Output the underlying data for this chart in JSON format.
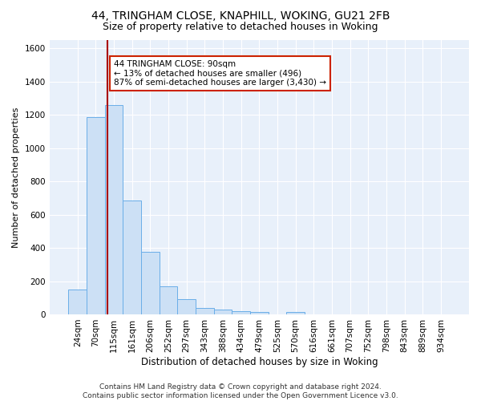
{
  "title1": "44, TRINGHAM CLOSE, KNAPHILL, WOKING, GU21 2FB",
  "title2": "Size of property relative to detached houses in Woking",
  "xlabel": "Distribution of detached houses by size in Woking",
  "ylabel": "Number of detached properties",
  "bar_labels": [
    "24sqm",
    "70sqm",
    "115sqm",
    "161sqm",
    "206sqm",
    "252sqm",
    "297sqm",
    "343sqm",
    "388sqm",
    "434sqm",
    "479sqm",
    "525sqm",
    "570sqm",
    "616sqm",
    "661sqm",
    "707sqm",
    "752sqm",
    "798sqm",
    "843sqm",
    "889sqm",
    "934sqm"
  ],
  "bar_values": [
    150,
    1185,
    1260,
    685,
    375,
    170,
    90,
    37,
    28,
    20,
    15,
    0,
    12,
    0,
    0,
    0,
    0,
    0,
    0,
    0,
    0
  ],
  "bar_color": "#cce0f5",
  "bar_edge_color": "#6aaee8",
  "vline_color": "#aa0000",
  "vline_x_index": 1.65,
  "annotation_text": "44 TRINGHAM CLOSE: 90sqm\n← 13% of detached houses are smaller (496)\n87% of semi-detached houses are larger (3,430) →",
  "annotation_box_facecolor": "white",
  "annotation_box_edgecolor": "#cc2200",
  "ylim": [
    0,
    1650
  ],
  "yticks": [
    0,
    200,
    400,
    600,
    800,
    1000,
    1200,
    1400,
    1600
  ],
  "footer1": "Contains HM Land Registry data © Crown copyright and database right 2024.",
  "footer2": "Contains public sector information licensed under the Open Government Licence v3.0.",
  "bg_color": "#ffffff",
  "plot_bg_color": "#e8f0fa",
  "grid_color": "#ffffff",
  "title1_fontsize": 10,
  "title2_fontsize": 9,
  "xlabel_fontsize": 8.5,
  "ylabel_fontsize": 8,
  "tick_fontsize": 7.5,
  "annotation_fontsize": 7.5,
  "footer_fontsize": 6.5
}
